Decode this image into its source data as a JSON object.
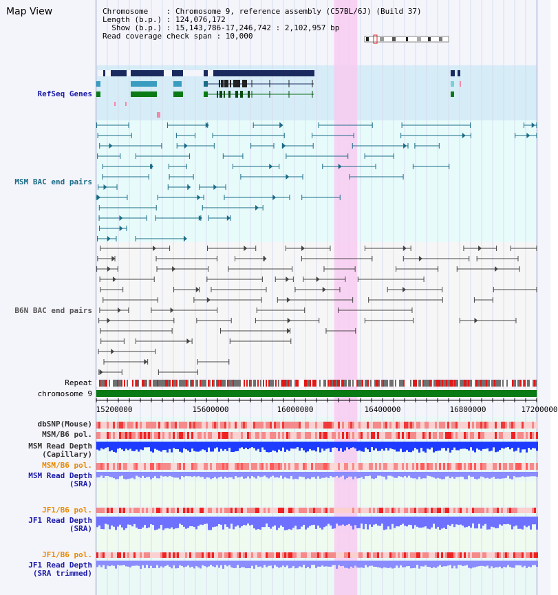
{
  "title": "Map View",
  "header": {
    "chromosome_row": "Chromosome    : Chromosome 9, reference assembly (C57BL/6J) (Build 37)",
    "length_row": "Length (b.p.) : 124,076,172",
    "show_row": "  Show (b.p.) : 15,143,786-17,246,742 : 2,102,957 bp",
    "coverage_row": "Read coverage check span : 10,000"
  },
  "axis": {
    "start": 15143786,
    "end": 17246742,
    "ticks": [
      "15200000",
      "15600000",
      "16000000",
      "16400000",
      "16800000",
      "17200000"
    ],
    "highlight_start": 16280000,
    "highlight_end": 16390000
  },
  "colors": {
    "refseq": "#1a2a5e",
    "refseq_bg": "#d6ecf7",
    "msm_bac": "#1a6b86",
    "b6n_bac": "#444444",
    "highlight": "#f8cbf1",
    "repeat_red": "#e01818",
    "repeat_gray": "#707070",
    "chromosome_green": "#0a7a14",
    "snp": "#f25555",
    "depth_blue": "#1e3cff",
    "depth_light": "#8a8cff",
    "orange_label": "#e88a00"
  },
  "tracks": {
    "refseq_genes": "RefSeq Genes",
    "msm_bac": "MSM BAC end pairs",
    "b6n_bac": "B6N BAC end pairs",
    "repeat": "Repeat",
    "chromosome": "chromosome 9",
    "dbsnp": "dbSNP(Mouse)",
    "msm_b6_pol": "MSM/B6 pol.",
    "msm_read_depth_cap_1": "MSM Read Depth",
    "msm_read_depth_cap_2": "(Capillary)",
    "msm_b6_pol_2": "MSM/B6 pol.",
    "msm_read_depth_sra_1": "MSM Read Depth",
    "msm_read_depth_sra_2": "(SRA)",
    "jf1_b6_pol": "JF1/B6 pol.",
    "jf1_read_depth_1": "JF1 Read Depth",
    "jf1_read_depth_2": "(SRA)",
    "jf1_b6_pol_2": "JF1/B6 pol.",
    "jf1_read_depth_trim_1": "JF1 Read Depth",
    "jf1_read_depth_trim_2": "(SRA trimmed)"
  }
}
